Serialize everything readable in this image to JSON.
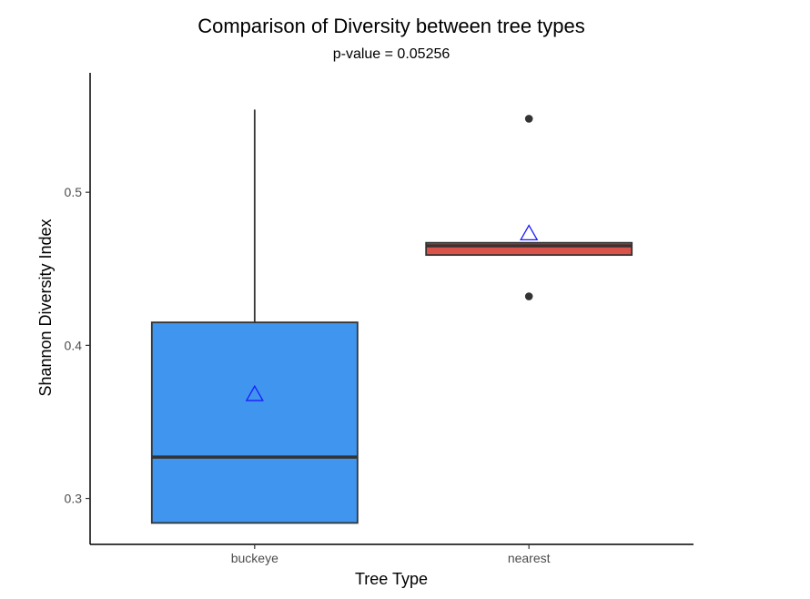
{
  "chart_data": {
    "type": "box",
    "title": "Comparison of Diversity between tree types",
    "subtitle": "p-value = 0.05256",
    "xlabel": "Tree Type",
    "ylabel": "Shannon Diversity Index",
    "ylim": [
      0.27,
      0.578
    ],
    "yticks": [
      0.3,
      0.4,
      0.5
    ],
    "ytick_labels": [
      "0.3",
      "0.4",
      "0.5"
    ],
    "categories": [
      "buckeye",
      "nearest"
    ],
    "boxes": [
      {
        "category": "buckeye",
        "color": "#4095ee",
        "whisker_low": 0.284,
        "q1": 0.284,
        "median": 0.327,
        "q3": 0.415,
        "whisker_high": 0.554,
        "mean": 0.368,
        "outliers": []
      },
      {
        "category": "nearest",
        "color": "#d9534a",
        "whisker_low": 0.459,
        "q1": 0.459,
        "median": 0.465,
        "q3": 0.467,
        "whisker_high": 0.467,
        "mean": 0.473,
        "outliers": [
          0.548,
          0.432
        ]
      }
    ],
    "mean_marker_color": "#1a1aff",
    "grid": false,
    "legend": "none"
  }
}
